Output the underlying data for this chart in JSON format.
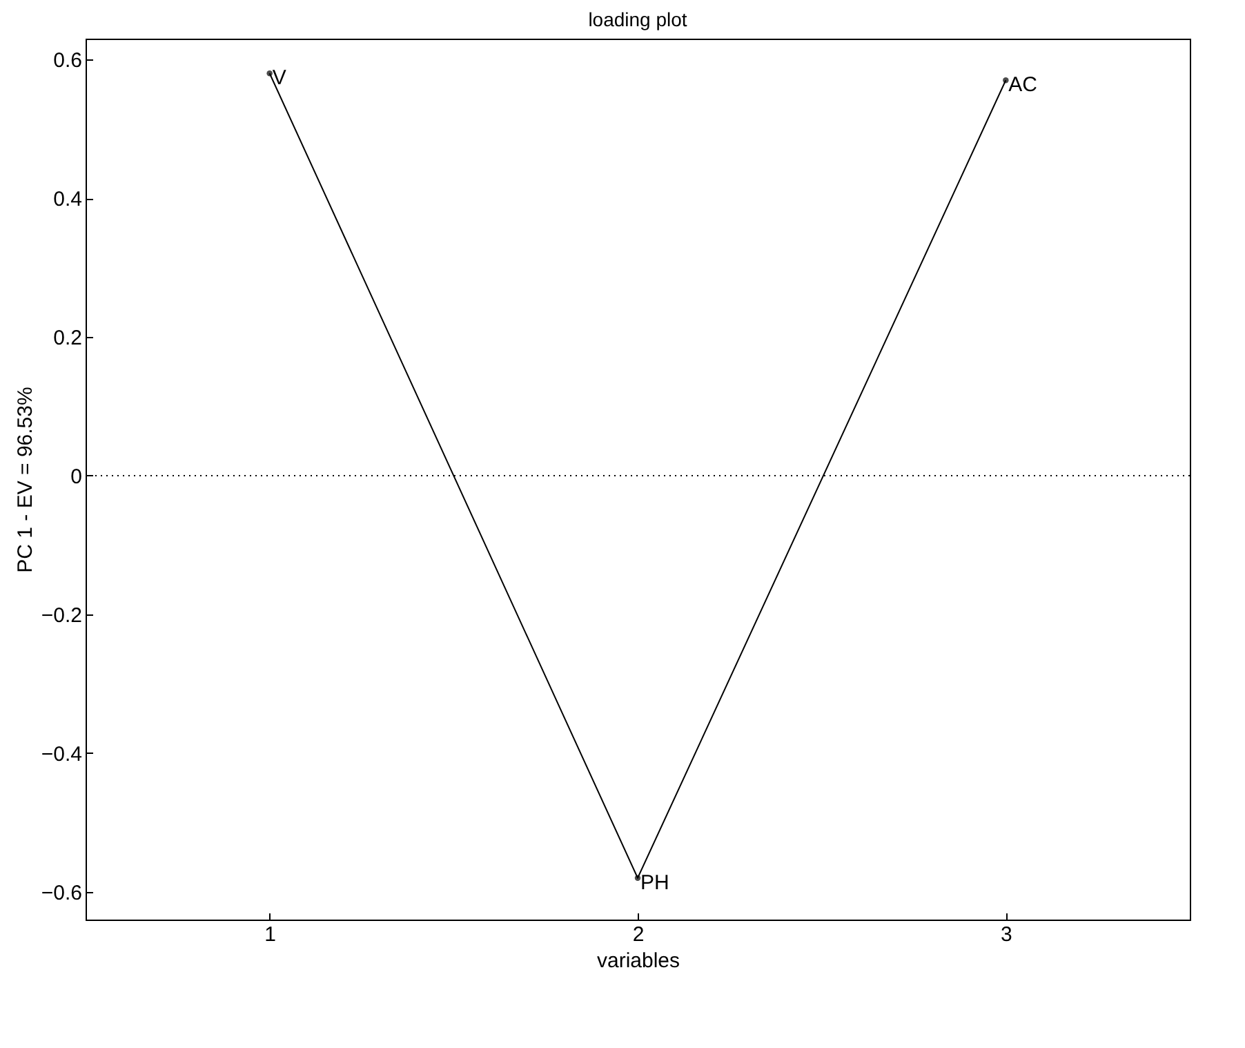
{
  "chart_data": {
    "type": "line",
    "title": "loading plot",
    "xlabel": "variables",
    "ylabel": "PC 1 - EV = 96.53%",
    "x": [
      1,
      2,
      3
    ],
    "series": [
      {
        "color": "#000000",
        "values": [
          0.58,
          -0.58,
          0.57
        ]
      }
    ],
    "xlim": [
      0.5,
      3.5
    ],
    "xticks": [
      1,
      2,
      3
    ],
    "ylim": [
      -0.64,
      0.63
    ],
    "yticks": [
      -0.6,
      -0.4,
      -0.2,
      0,
      0.2,
      0.4,
      0.6
    ],
    "marker": "circle",
    "grid": false,
    "ref_lines": [
      {
        "axis": "y",
        "value": 0,
        "line_style": "dotted",
        "color": "#000000"
      }
    ],
    "annotations": [
      {
        "text": "V",
        "x": 1,
        "y": 0.58
      },
      {
        "text": "PH",
        "x": 2,
        "y": -0.58
      },
      {
        "text": "AC",
        "x": 3,
        "y": 0.57
      }
    ]
  }
}
